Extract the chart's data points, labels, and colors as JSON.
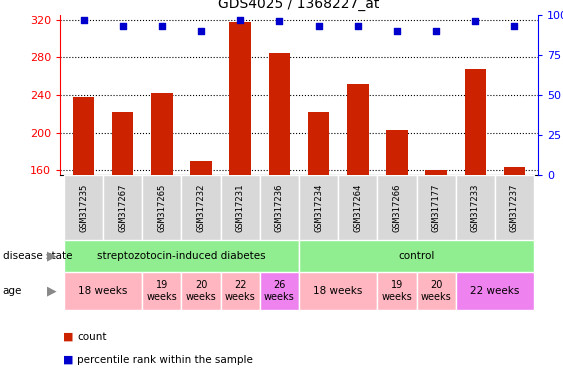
{
  "title": "GDS4025 / 1368227_at",
  "samples": [
    "GSM317235",
    "GSM317267",
    "GSM317265",
    "GSM317232",
    "GSM317231",
    "GSM317236",
    "GSM317234",
    "GSM317264",
    "GSM317266",
    "GSM317177",
    "GSM317233",
    "GSM317237"
  ],
  "counts": [
    238,
    222,
    242,
    170,
    318,
    285,
    222,
    252,
    203,
    160,
    268,
    163
  ],
  "percentiles": [
    97,
    93,
    93,
    90,
    97,
    96,
    93,
    93,
    90,
    90,
    96,
    93
  ],
  "ymin": 155,
  "ymax": 325,
  "yticks_left": [
    160,
    200,
    240,
    280,
    320
  ],
  "yticks_right": [
    0,
    25,
    50,
    75,
    100
  ],
  "bar_color": "#cc2200",
  "dot_color": "#0000cc",
  "bar_width": 0.55,
  "disease_color": "#90EE90",
  "age_color_light": "#FFB6C1",
  "age_color_dark": "#EE82EE",
  "legend_count_color": "#cc2200",
  "legend_dot_color": "#0000cc"
}
